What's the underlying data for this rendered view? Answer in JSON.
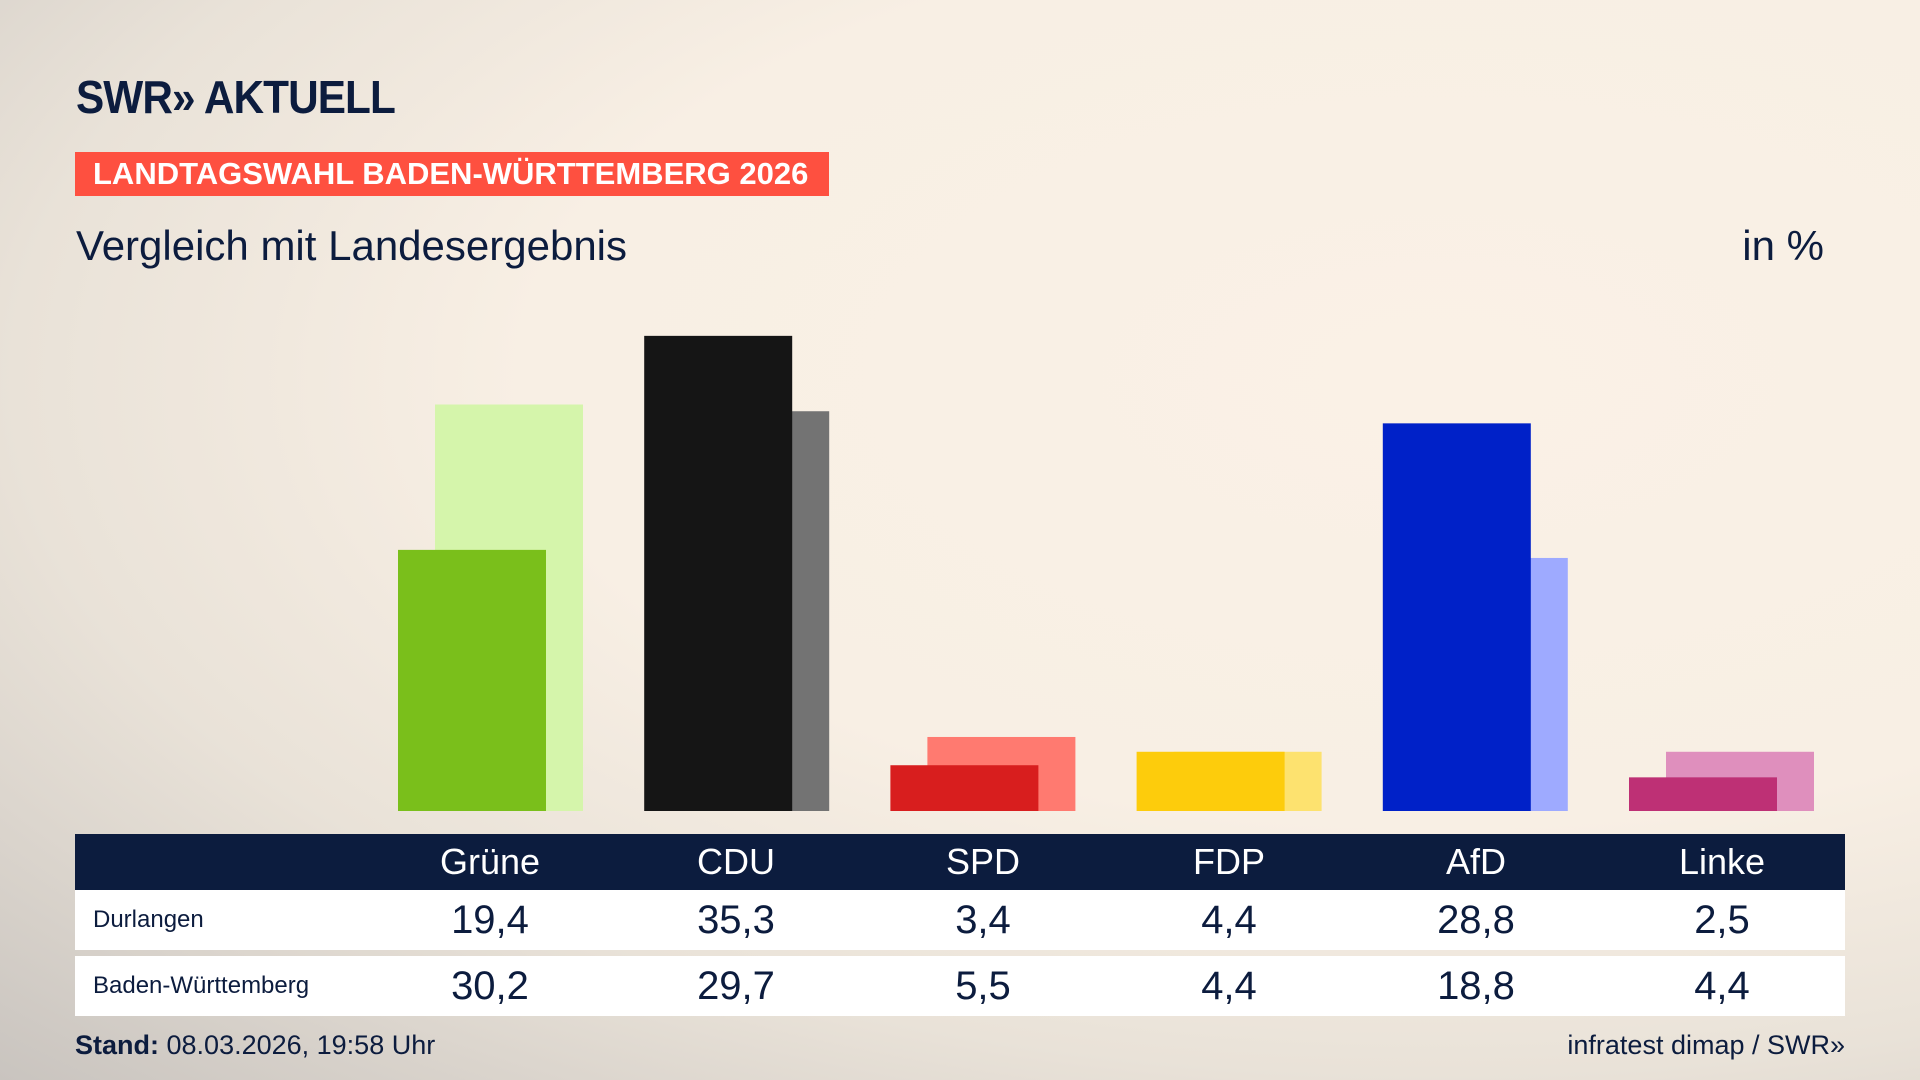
{
  "header": {
    "logo": "SWR» AKTUELL",
    "banner": "LANDTAGSWAHL BADEN-WÜRTTEMBERG 2026",
    "subtitle": "Vergleich mit Landesergebnis",
    "unit": "in %"
  },
  "chart_data": {
    "type": "bar",
    "categories": [
      "Grüne",
      "CDU",
      "SPD",
      "FDP",
      "AfD",
      "Linke"
    ],
    "series": [
      {
        "name": "Durlangen",
        "values": [
          19.4,
          35.3,
          3.4,
          4.4,
          28.8,
          2.5
        ]
      },
      {
        "name": "Baden-Württemberg",
        "values": [
          30.2,
          29.7,
          5.5,
          4.4,
          18.8,
          4.4
        ]
      }
    ],
    "colors": {
      "Durlangen": [
        "#7abf1b",
        "#151515",
        "#d81e1e",
        "#fdcc0c",
        "#0021c8",
        "#be3075"
      ],
      "Baden-Württemberg": [
        "#d5f5ab",
        "#737373",
        "#ff7a70",
        "#fde26f",
        "#9eaaff",
        "#df8fbd"
      ]
    },
    "grid": false
  },
  "table": {
    "headers": [
      "Grüne",
      "CDU",
      "SPD",
      "FDP",
      "AfD",
      "Linke"
    ],
    "rows": [
      {
        "label": "Durlangen",
        "values": [
          "19,4",
          "35,3",
          "3,4",
          "4,4",
          "28,8",
          "2,5"
        ]
      },
      {
        "label": "Baden-Württemberg",
        "values": [
          "30,2",
          "29,7",
          "5,5",
          "4,4",
          "18,8",
          "4,4"
        ]
      }
    ]
  },
  "footer": {
    "stand_label": "Stand:",
    "stand_value": "08.03.2026, 19:58 Uhr",
    "source": "infratest dimap / SWR»"
  }
}
